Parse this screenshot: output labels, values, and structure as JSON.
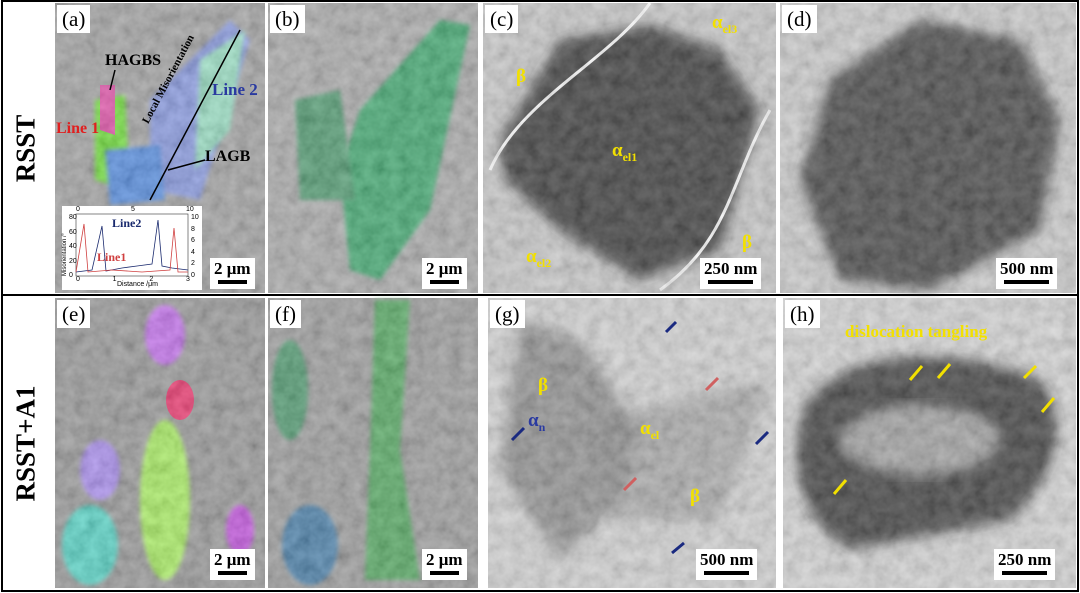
{
  "row_labels": [
    "RSST",
    "RSST+A1"
  ],
  "panels": [
    {
      "label": "(a)",
      "scale_bar": "2 μm",
      "annotations": [
        "HAGBS",
        "Line 2",
        "Local Misorientation",
        "Line 1",
        "LAGB"
      ],
      "inset": {
        "y_label": "Misorientation /°",
        "x_label": "Distance /μm",
        "series": [
          "Line2",
          "Line1"
        ],
        "left_ticks": [
          0,
          20,
          40,
          60,
          80
        ],
        "right_ticks": [
          0,
          2,
          4,
          6,
          8,
          10
        ],
        "top_ticks": [
          0,
          5,
          10
        ],
        "bottom_ticks": [
          0,
          1,
          2,
          3
        ]
      }
    },
    {
      "label": "(b)",
      "scale_bar": "2 μm"
    },
    {
      "label": "(c)",
      "scale_bar": "250 nm",
      "annotations": [
        {
          "base": "α",
          "sub": "el3"
        },
        {
          "base": "β"
        },
        {
          "base": "α",
          "sub": "el1"
        },
        {
          "base": "β"
        },
        {
          "base": "α",
          "sub": "el2"
        }
      ]
    },
    {
      "label": "(d)",
      "scale_bar": "500 nm"
    },
    {
      "label": "(e)",
      "scale_bar": "2 μm"
    },
    {
      "label": "(f)",
      "scale_bar": "2 μm"
    },
    {
      "label": "(g)",
      "scale_bar": "500 nm",
      "annotations": [
        {
          "base": "β"
        },
        {
          "base": "α",
          "sub": "n"
        },
        {
          "base": "α",
          "sub": "el"
        },
        {
          "base": "β"
        }
      ]
    },
    {
      "label": "(h)",
      "scale_bar": "250 nm",
      "annotations": [
        "dislocation tangling"
      ]
    }
  ]
}
